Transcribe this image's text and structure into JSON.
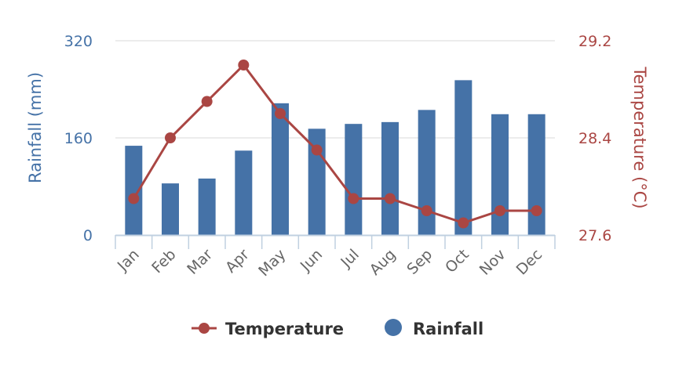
{
  "chart_data": {
    "type": "bar+line",
    "categories": [
      "Jan",
      "Feb",
      "Mar",
      "Apr",
      "May",
      "Jun",
      "Jul",
      "Aug",
      "Sep",
      "Oct",
      "Nov",
      "Dec"
    ],
    "series": [
      {
        "name": "Rainfall",
        "type": "bar",
        "axis": "left",
        "color": "#4572a7",
        "values": [
          147,
          85,
          93,
          139,
          217,
          175,
          183,
          186,
          206,
          255,
          199,
          199
        ]
      },
      {
        "name": "Temperature",
        "type": "line",
        "axis": "right",
        "color": "#aa4643",
        "values": [
          27.9,
          28.4,
          28.7,
          29.0,
          28.6,
          28.3,
          27.9,
          27.9,
          27.8,
          27.7,
          27.8,
          27.8
        ]
      }
    ],
    "left_axis": {
      "label": "Rainfall (mm)",
      "ticks": [
        "0",
        "160",
        "320"
      ],
      "range": [
        0,
        320
      ],
      "color": "#4572a7"
    },
    "right_axis": {
      "label": "Temperature (°C)",
      "ticks": [
        "27.6",
        "28.4",
        "29.2"
      ],
      "range": [
        27.6,
        29.2
      ],
      "color": "#aa4643"
    },
    "legend": {
      "placement": "bottom",
      "items": [
        "Temperature",
        "Rainfall"
      ]
    },
    "grid": true
  }
}
